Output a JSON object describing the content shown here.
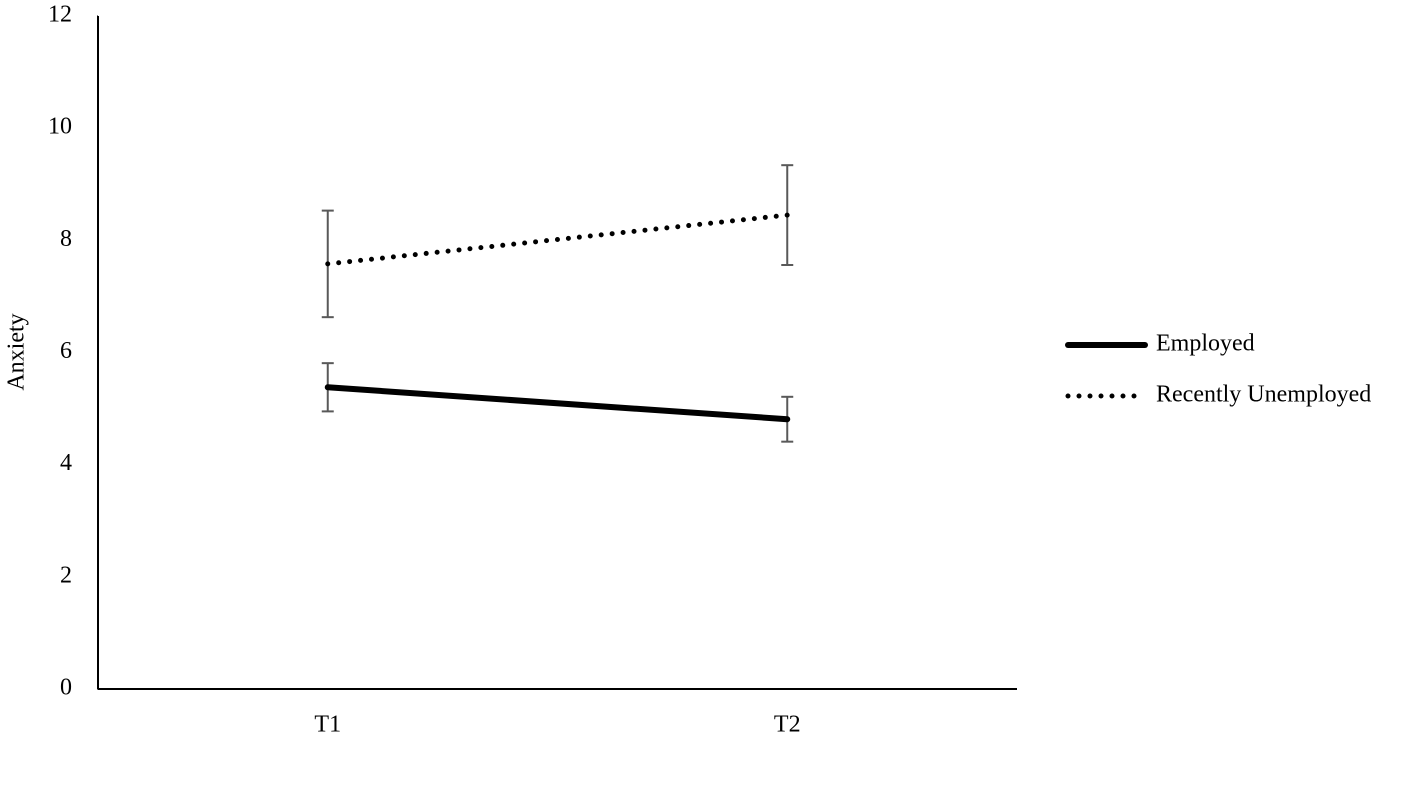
{
  "chart_data": {
    "type": "line",
    "y_label": "Anxiety",
    "categories": [
      "T1",
      "T2"
    ],
    "series": [
      {
        "name": "Employed",
        "color": "#000000",
        "style": "solid",
        "values": [
          5.38,
          4.81
        ],
        "errors": [
          0.43,
          0.4
        ]
      },
      {
        "name": "Recently Unemployed",
        "color": "#000000",
        "style": "dotted",
        "values": [
          7.58,
          8.45
        ],
        "errors": [
          0.95,
          0.89
        ]
      }
    ],
    "error_color": "#595959",
    "ylim": [
      0,
      12
    ],
    "yticks": [
      0,
      2,
      4,
      6,
      8,
      10,
      12
    ],
    "grid": false,
    "legend": "right"
  }
}
